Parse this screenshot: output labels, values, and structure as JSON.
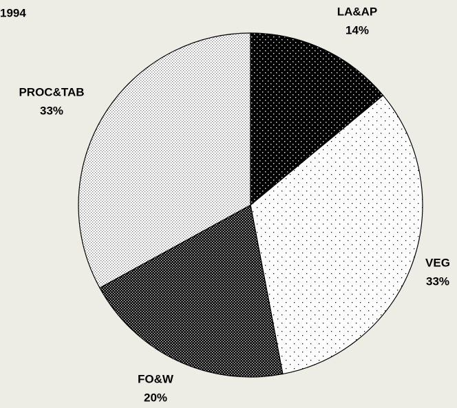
{
  "chart_data": {
    "type": "pie",
    "title": "1994",
    "categories": [
      "LA&AP",
      "VEG",
      "FO&W",
      "PROC&TAB"
    ],
    "values": [
      14,
      33,
      20,
      33
    ],
    "value_labels": [
      "14%",
      "33%",
      "20%",
      "33%"
    ]
  }
}
